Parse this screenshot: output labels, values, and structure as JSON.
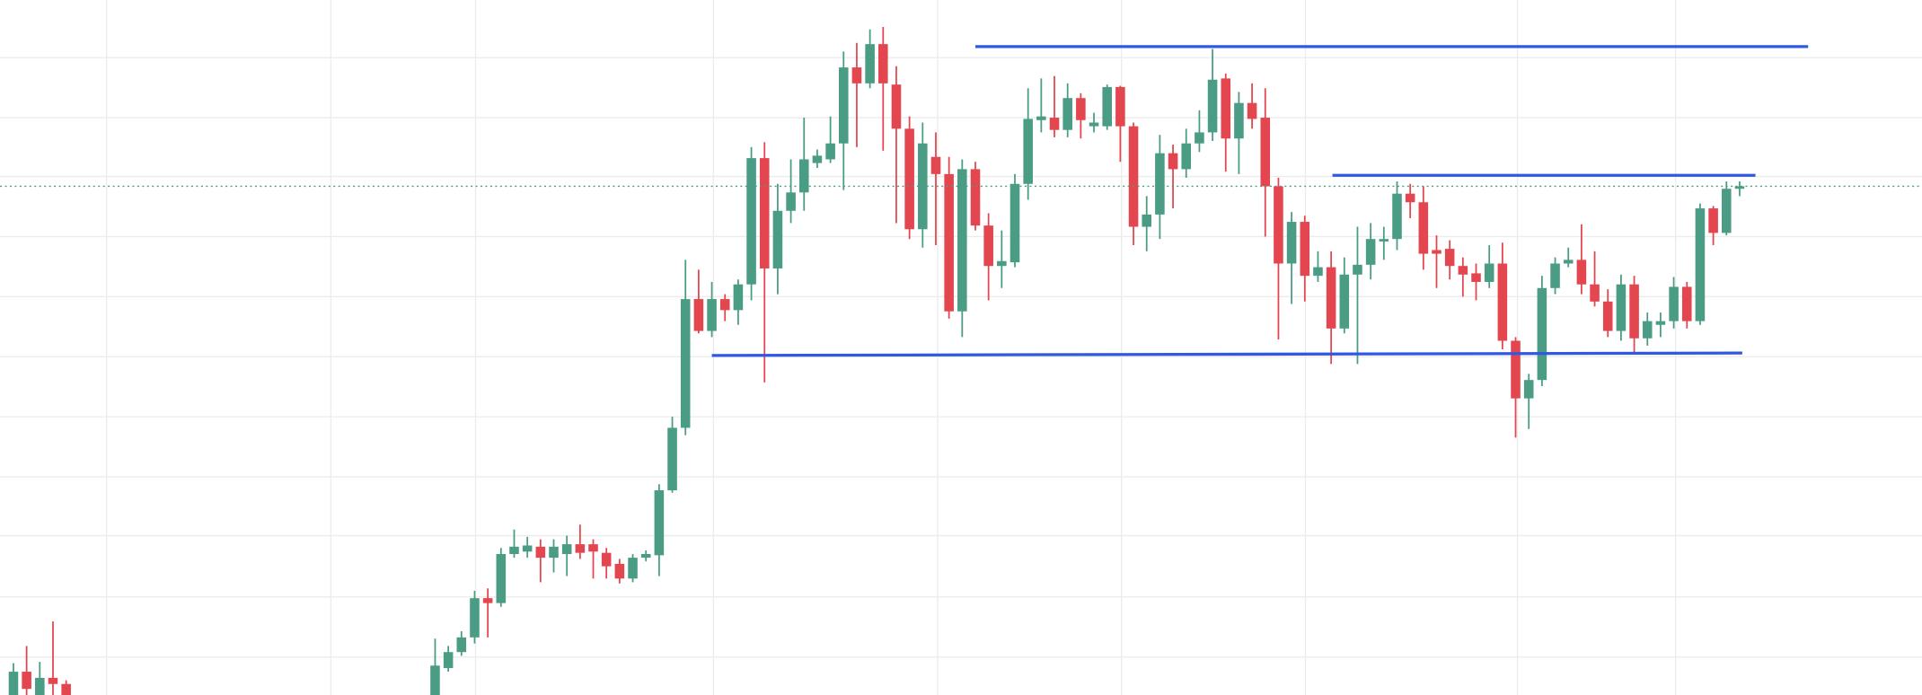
{
  "chart_data": {
    "type": "candlestick",
    "up_color": "#4a9c85",
    "down_color": "#e3464f",
    "xlim": [
      -1.02,
      144.84
    ],
    "ylim": [
      0,
      567
    ],
    "xgrid": [
      7.07,
      24.09,
      35.07,
      53.12,
      70.14,
      84.09,
      98.05,
      114.14,
      126.14
    ],
    "ygrid": [
      520,
      471,
      423,
      374,
      325,
      276,
      227,
      178,
      130,
      80,
      31
    ],
    "grid_color": "#ececec",
    "x": [
      0,
      1,
      2,
      3,
      4,
      32,
      33,
      34,
      35,
      36,
      37,
      38,
      39,
      40,
      41,
      42,
      43,
      44,
      45,
      46,
      47,
      48,
      49,
      50,
      51,
      52,
      53,
      54,
      55,
      56,
      57,
      58,
      59,
      60,
      61,
      62,
      63,
      64,
      65,
      66,
      67,
      68,
      69,
      70,
      71,
      72,
      73,
      74,
      75,
      76,
      77,
      78,
      79,
      80,
      81,
      82,
      83,
      84,
      85,
      86,
      87,
      88,
      89,
      90,
      91,
      92,
      93,
      94,
      95,
      96,
      97,
      98,
      99,
      100,
      101,
      102,
      103,
      104,
      105,
      106,
      107,
      108,
      109,
      110,
      111,
      112,
      113,
      114,
      115,
      116,
      117,
      118,
      119,
      120,
      121,
      122,
      123,
      124,
      125,
      126,
      127,
      128,
      129,
      130,
      131
    ],
    "open": [
      0,
      19,
      0,
      14,
      9,
      0,
      22,
      35,
      47,
      79,
      75,
      115,
      117,
      121,
      112,
      115,
      123,
      123,
      116,
      107,
      95,
      112,
      114,
      167,
      218,
      323,
      297,
      323,
      314,
      335,
      438,
      348,
      395,
      410,
      434,
      437,
      450,
      512,
      499,
      531,
      498,
      462,
      380,
      439,
      425,
      313,
      429,
      383,
      350,
      353,
      417,
      469,
      471,
      461,
      487,
      464,
      464,
      496,
      464,
      382,
      392,
      442,
      429,
      450,
      459,
      503,
      454,
      483,
      471,
      415,
      352,
      386,
      342,
      349,
      299,
      343,
      351,
      370,
      372,
      409,
      402,
      363,
      364,
      350,
      344,
      337,
      352,
      289,
      242,
      257,
      332,
      352,
      355,
      335,
      321,
      297,
      335,
      291,
      302,
      305,
      333,
      305,
      397,
      377,
      413
    ],
    "high": [
      26,
      40,
      27,
      60,
      12,
      46,
      40,
      52,
      85,
      87,
      120,
      135,
      129,
      127,
      127,
      130,
      139,
      127,
      120,
      111,
      115,
      118,
      172,
      227,
      355,
      347,
      337,
      327,
      339,
      447,
      451,
      417,
      437,
      471,
      445,
      472,
      525,
      532,
      543,
      545,
      513,
      472,
      467,
      459,
      439,
      437,
      435,
      393,
      379,
      425,
      495,
      503,
      505,
      499,
      491,
      475,
      498,
      497,
      467,
      407,
      457,
      449,
      462,
      477,
      527,
      507,
      492,
      499,
      495,
      422,
      394,
      391,
      362,
      362,
      357,
      382,
      385,
      382,
      419,
      417,
      415,
      375,
      371,
      357,
      352,
      367,
      369,
      292,
      262,
      342,
      357,
      365,
      384,
      362,
      331,
      343,
      342,
      312,
      312,
      341,
      337,
      401,
      399,
      419,
      419
    ],
    "low": [
      0,
      0,
      0,
      0,
      0,
      0,
      19,
      32,
      42,
      47,
      72,
      112,
      112,
      92,
      100,
      97,
      111,
      95,
      95,
      91,
      92,
      109,
      97,
      165,
      212,
      295,
      292,
      305,
      302,
      322,
      255,
      327,
      385,
      395,
      430,
      434,
      412,
      447,
      495,
      444,
      385,
      372,
      365,
      367,
      307,
      292,
      379,
      322,
      332,
      349,
      404,
      459,
      455,
      455,
      454,
      459,
      461,
      435,
      367,
      362,
      372,
      397,
      422,
      443,
      452,
      427,
      425,
      462,
      374,
      290,
      319,
      321,
      337,
      270,
      295,
      270,
      339,
      355,
      363,
      389,
      347,
      332,
      339,
      325,
      322,
      332,
      282,
      210,
      217,
      252,
      327,
      349,
      327,
      317,
      292,
      289,
      279,
      285,
      292,
      299,
      299,
      302,
      367,
      375,
      407
    ],
    "close": [
      19,
      5,
      14,
      9,
      0,
      24,
      35,
      47,
      79,
      75,
      115,
      121,
      122,
      112,
      121,
      123,
      116,
      117,
      105,
      95,
      112,
      115,
      167,
      218,
      323,
      297,
      323,
      314,
      335,
      438,
      348,
      395,
      410,
      437,
      440,
      450,
      512,
      499,
      531,
      499,
      462,
      380,
      450,
      425,
      313,
      429,
      383,
      350,
      354,
      417,
      470,
      472,
      461,
      487,
      469,
      467,
      496,
      464,
      382,
      392,
      442,
      429,
      450,
      459,
      502,
      454,
      483,
      470,
      415,
      352,
      386,
      342,
      349,
      299,
      343,
      351,
      372,
      372,
      409,
      402,
      360,
      360,
      350,
      343,
      337,
      352,
      289,
      242,
      257,
      332,
      352,
      355,
      335,
      321,
      297,
      335,
      291,
      305,
      305,
      333,
      305,
      397,
      377,
      413,
      415
    ],
    "drawings": [
      {
        "x": [
          73.0,
          136.2
        ],
        "y": [
          529,
          529
        ]
      },
      {
        "x": [
          100.1,
          132.2
        ],
        "y": [
          424,
          424
        ]
      },
      {
        "x": [
          53.0,
          131.2
        ],
        "y": [
          277,
          279
        ]
      }
    ],
    "drawing_color": "#3158e0",
    "price_line": 415,
    "price_line_color": "#4a9c85"
  }
}
